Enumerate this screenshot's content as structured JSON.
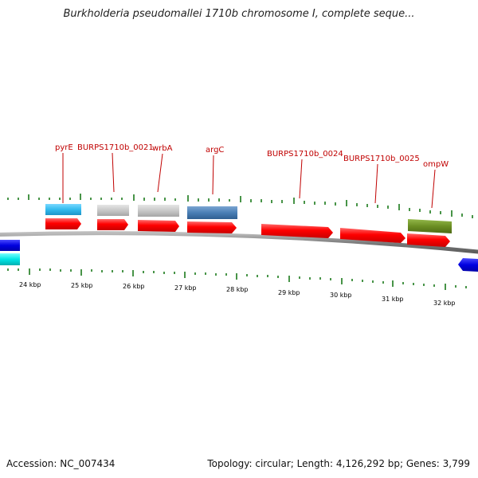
{
  "title": "Burkholderia pseudomallei 1710b chromosome I, complete seque...",
  "footer": {
    "accession": "Accession: NC_007434",
    "summary": "Topology: circular; Length: 4,126,292 bp; Genes: 3,799"
  },
  "colors": {
    "backbone": "#808080",
    "cds": "#ff0000",
    "tick": "#1a7a1a",
    "label": "#c00000",
    "feature_cyan": "#33bbee",
    "feature_gray": "#c8c8c8",
    "feature_steelblue": "#4a7fb5",
    "feature_olive": "#6b8e23",
    "feature_blue": "#0000e0",
    "feature_aqua": "#00e5e5"
  },
  "kbp_labels": [
    "24 kbp",
    "25 kbp",
    "26 kbp",
    "27 kbp",
    "28 kbp",
    "29 kbp",
    "30 kbp",
    "31 kbp",
    "32 kbp"
  ],
  "gene_labels": [
    "pyrE",
    "BURPS1710b_0021",
    "wrbA",
    "argC",
    "BURPS1710b_0024",
    "BURPS1710b_0025",
    "ompW"
  ]
}
